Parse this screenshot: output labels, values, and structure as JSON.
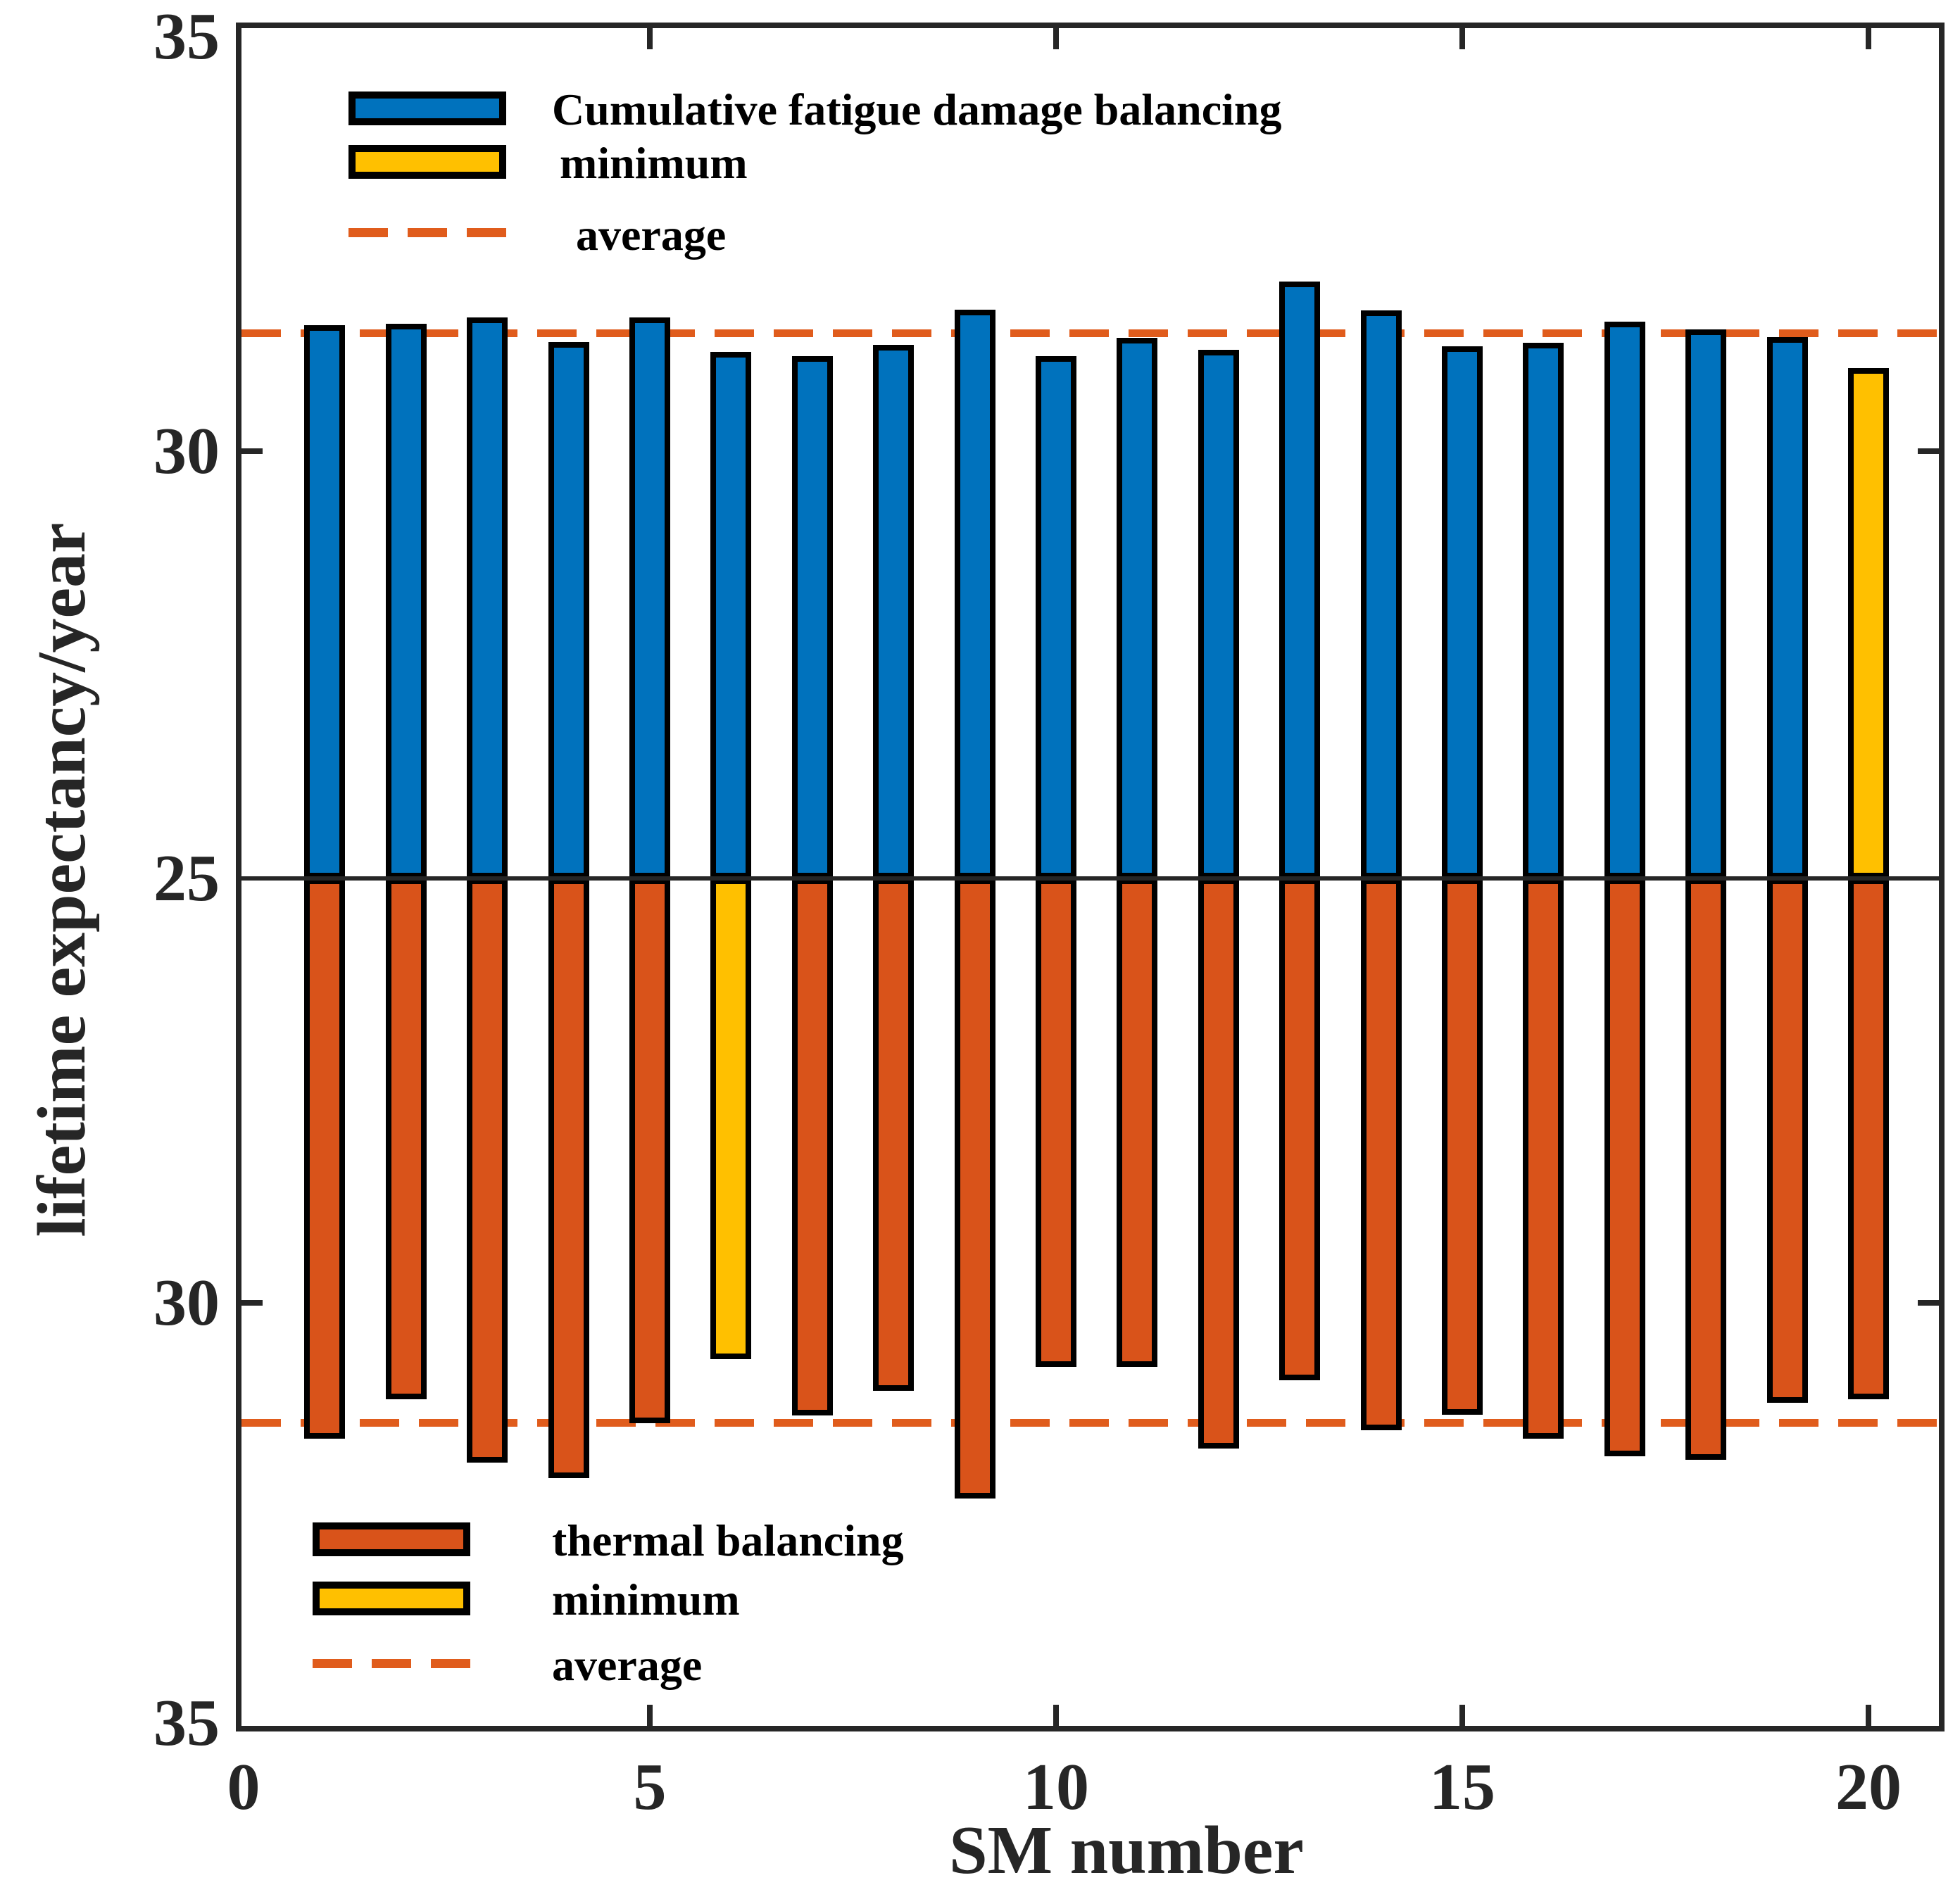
{
  "figure": {
    "ylabel": "lifetime expectancy/year",
    "xlabel": "SM number",
    "y_tick_labels": [
      "35",
      "30",
      "25",
      "30",
      "35"
    ],
    "x_tick_labels": [
      "0",
      "5",
      "10",
      "15",
      "20"
    ]
  },
  "legend_top": {
    "series_label": "Cumulative fatigue damage balancing",
    "minimum_label": "minimum",
    "average_label": "average"
  },
  "legend_bottom": {
    "series_label": "thermal balancing",
    "minimum_label": "minimum",
    "average_label": "average"
  },
  "colors": {
    "top_bar": "#0072BD",
    "bottom_bar": "#D9531A",
    "minimum_bar": "#FFC000",
    "average_line": "#E05C1C",
    "axis": "#262626",
    "bar_edge": "#000000"
  },
  "chart_data": {
    "type": "bar",
    "layout": "mirrored-vertical",
    "description": "Two mirrored bar charts sharing an x-axis of SM number 1-20; top half values grow upward from 25 to 35, bottom half values grow downward from 25 to 35. Minimum bar of each series is highlighted yellow; dashed orange lines mark each series average.",
    "categories": [
      1,
      2,
      3,
      4,
      5,
      6,
      7,
      8,
      9,
      10,
      11,
      12,
      13,
      14,
      15,
      16,
      17,
      18,
      19,
      20
    ],
    "series": [
      {
        "name": "Cumulative fatigue damage balancing",
        "position": "top",
        "color": "#0072BD",
        "values": [
          31.48,
          31.5,
          31.57,
          31.28,
          31.57,
          31.17,
          31.12,
          31.25,
          31.66,
          31.12,
          31.33,
          31.19,
          31.99,
          31.65,
          31.23,
          31.27,
          31.52,
          31.43,
          31.34,
          30.98
        ],
        "minimum_at": 20,
        "minimum_value": 30.98,
        "average": 31.39
      },
      {
        "name": "thermal balancing",
        "position": "bottom",
        "color": "#D9531A",
        "values": [
          31.56,
          31.1,
          31.84,
          32.02,
          31.38,
          30.63,
          31.29,
          31.0,
          32.26,
          30.72,
          30.72,
          31.68,
          30.88,
          31.46,
          31.28,
          31.56,
          31.77,
          31.81,
          31.14,
          31.1
        ],
        "minimum_at": 6,
        "minimum_value": 30.63,
        "average": 31.37
      }
    ],
    "minimum_bar_color": "#FFC000",
    "average_line_color": "#E05C1C",
    "average_line_style": "dashed",
    "xlabel": "SM number",
    "ylabel": "lifetime expectancy/year",
    "x_ticks": [
      0,
      5,
      10,
      15,
      20
    ],
    "y_ticks_labels_top_to_bottom": [
      35,
      30,
      25,
      30,
      35
    ],
    "value_range": [
      25,
      35
    ],
    "grid": false,
    "legend_top_position": "upper-left-inside",
    "legend_bottom_position": "lower-left-inside"
  }
}
